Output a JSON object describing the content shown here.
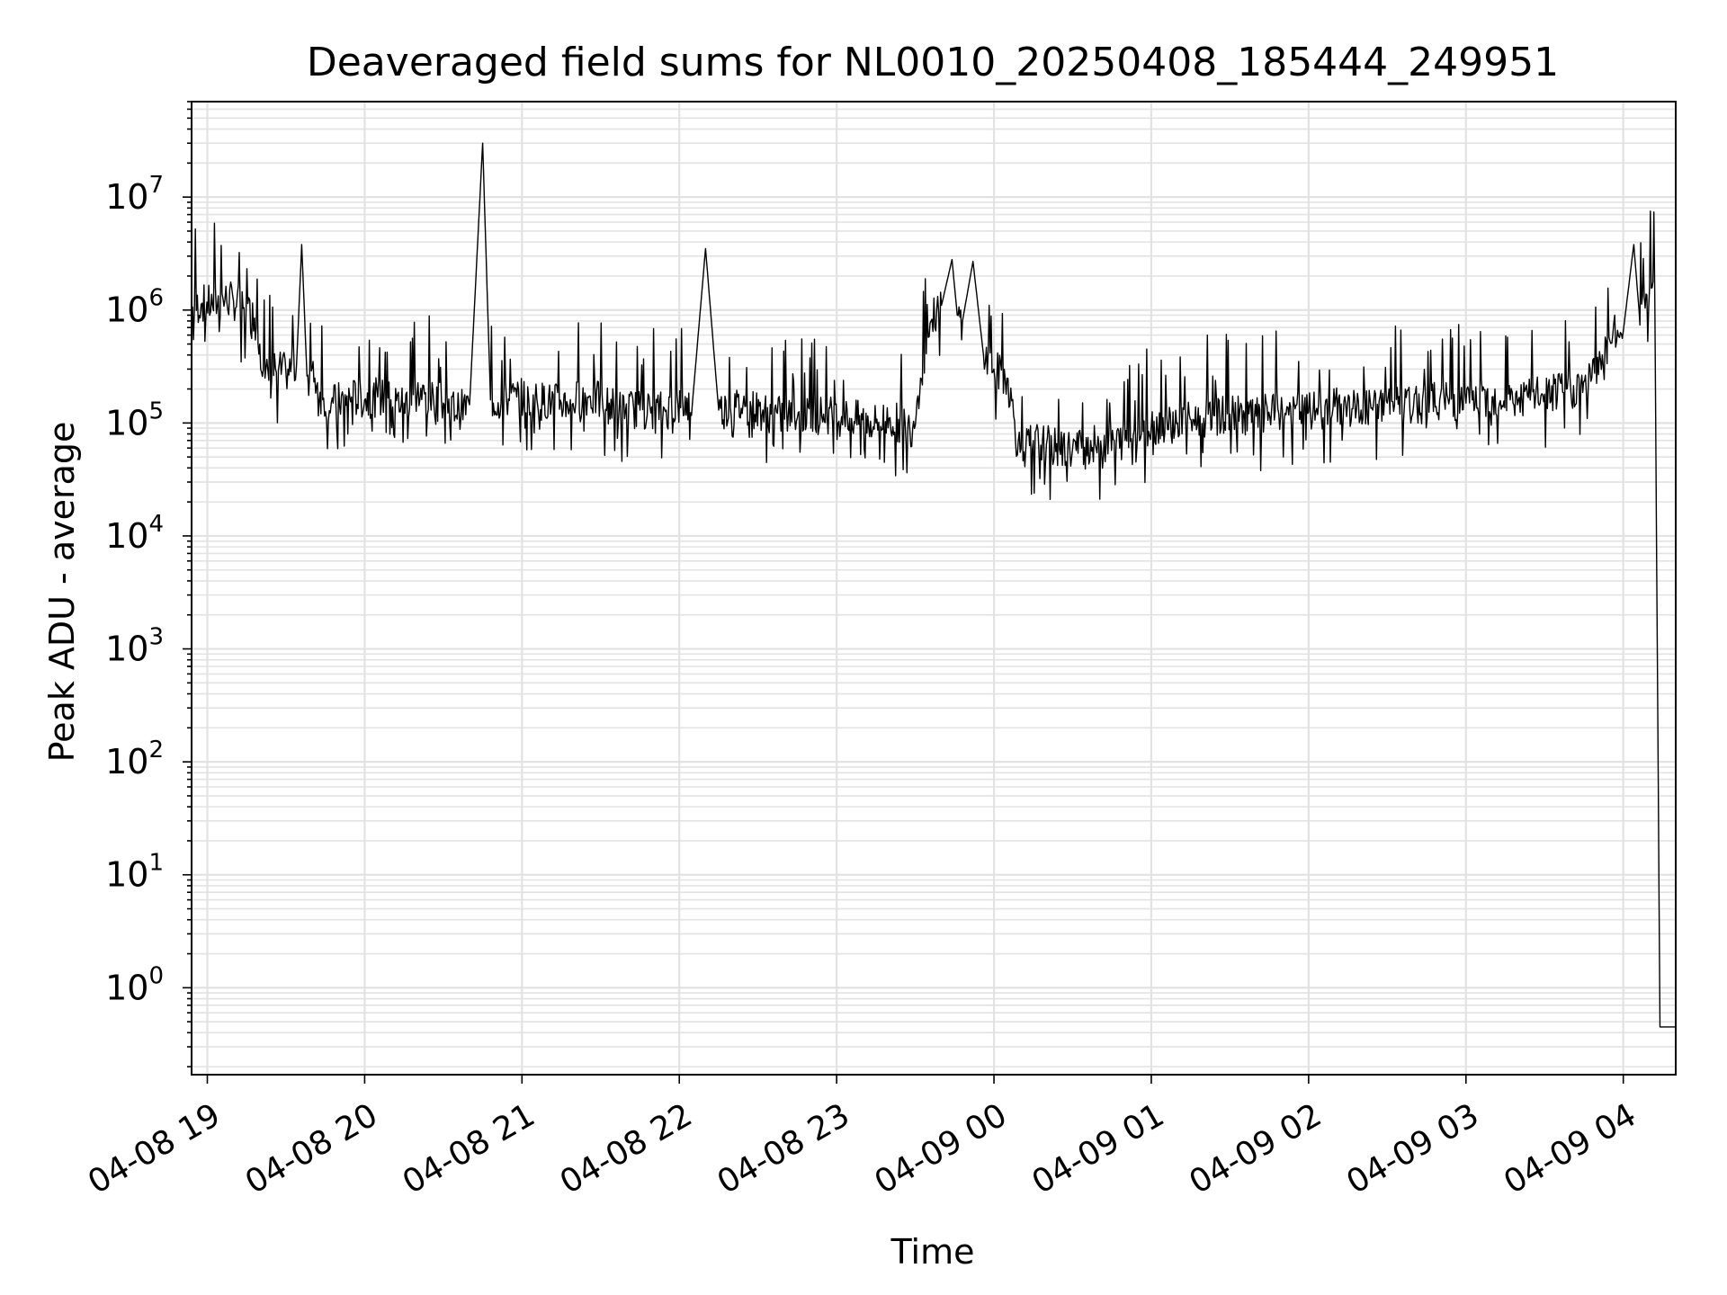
{
  "chart_data": {
    "type": "line",
    "title": "Deaveraged field sums for NL0010_20250408_185444_249951",
    "xlabel": "Time",
    "ylabel": "Peak ADU - average",
    "yscale": "log",
    "grid": "both (major and minor)",
    "xlim": [
      "04-08 18:54",
      "04-09 04:20"
    ],
    "ylim": [
      0.17,
      70000000
    ],
    "x_tick_labels": [
      "04-08 19",
      "04-08 20",
      "04-08 21",
      "04-08 22",
      "04-08 23",
      "04-09 00",
      "04-09 01",
      "04-09 02",
      "04-09 03",
      "04-09 04"
    ],
    "y_tick_labels": [
      {
        "base": "10",
        "exp": "0"
      },
      {
        "base": "10",
        "exp": "1"
      },
      {
        "base": "10",
        "exp": "2"
      },
      {
        "base": "10",
        "exp": "3"
      },
      {
        "base": "10",
        "exp": "4"
      },
      {
        "base": "10",
        "exp": "5"
      },
      {
        "base": "10",
        "exp": "6"
      },
      {
        "base": "10",
        "exp": "7"
      }
    ],
    "line_color": "#000000",
    "series": [
      {
        "x": [
          "04-08 18:54",
          "04-08 18:58",
          "04-08 19:02",
          "04-08 19:06",
          "04-08 19:10",
          "04-08 19:14",
          "04-08 19:18",
          "04-08 19:20",
          "04-08 19:22",
          "04-08 19:26",
          "04-08 19:30",
          "04-08 19:34",
          "04-08 19:36",
          "04-08 19:38",
          "04-08 19:41",
          "04-08 19:44",
          "04-08 19:48",
          "04-08 19:55",
          "04-08 20:00",
          "04-08 20:05",
          "04-08 20:10",
          "04-08 20:15",
          "04-08 20:20",
          "04-08 20:25",
          "04-08 20:30",
          "04-08 20:36",
          "04-08 20:40",
          "04-08 20:45",
          "04-08 20:48",
          "04-08 20:52",
          "04-08 20:58",
          "04-08 21:05",
          "04-08 21:15",
          "04-08 21:25",
          "04-08 21:35",
          "04-08 21:45",
          "04-08 21:55",
          "04-08 22:05",
          "04-08 22:10",
          "04-08 22:15",
          "04-08 22:25",
          "04-08 22:35",
          "04-08 22:45",
          "04-08 22:55",
          "04-08 23:05",
          "04-08 23:15",
          "04-08 23:20",
          "04-08 23:25",
          "04-08 23:29",
          "04-08 23:32",
          "04-08 23:36",
          "04-08 23:40",
          "04-08 23:44",
          "04-08 23:46",
          "04-08 23:48",
          "04-08 23:52",
          "04-08 23:56",
          "04-09 00:00",
          "04-09 00:05",
          "04-09 00:10",
          "04-09 00:15",
          "04-09 00:20",
          "04-09 00:25",
          "04-09 00:30",
          "04-09 00:40",
          "04-09 00:50",
          "04-09 01:00",
          "04-09 01:10",
          "04-09 01:20",
          "04-09 01:30",
          "04-09 01:40",
          "04-09 01:50",
          "04-09 02:00",
          "04-09 02:10",
          "04-09 02:20",
          "04-09 02:30",
          "04-09 02:40",
          "04-09 02:50",
          "04-09 03:00",
          "04-09 03:10",
          "04-09 03:20",
          "04-09 03:30",
          "04-09 03:40",
          "04-09 03:48",
          "04-09 03:52",
          "04-09 03:56",
          "04-09 04:00",
          "04-09 04:04",
          "04-09 04:06",
          "04-09 04:08",
          "04-09 04:10",
          "04-09 04:12",
          "04-09 04:14",
          "04-09 04:20"
        ],
        "y": [
          1000000,
          1150000,
          1100000,
          1250000,
          1200000,
          1050000,
          850000,
          500000,
          250000,
          300000,
          280000,
          320000,
          3800000,
          260000,
          250000,
          160000,
          150000,
          170000,
          160000,
          170000,
          160000,
          150000,
          180000,
          160000,
          150000,
          130000,
          145000,
          30000000,
          160000,
          150000,
          170000,
          160000,
          150000,
          170000,
          140000,
          130000,
          130000,
          150000,
          3500000,
          130000,
          140000,
          120000,
          110000,
          120000,
          110000,
          100000,
          110000,
          95000,
          90000,
          250000,
          800000,
          1100000,
          2800000,
          900000,
          800000,
          2700000,
          400000,
          300000,
          250000,
          55000,
          70000,
          65000,
          58000,
          60000,
          65000,
          70000,
          95000,
          100000,
          110000,
          120000,
          115000,
          130000,
          125000,
          140000,
          130000,
          150000,
          140000,
          160000,
          150000,
          170000,
          160000,
          180000,
          190000,
          250000,
          400000,
          600000,
          650000,
          3800000,
          1000000,
          1300000,
          1500000,
          1400000,
          0.45,
          0.45
        ]
      }
    ]
  }
}
